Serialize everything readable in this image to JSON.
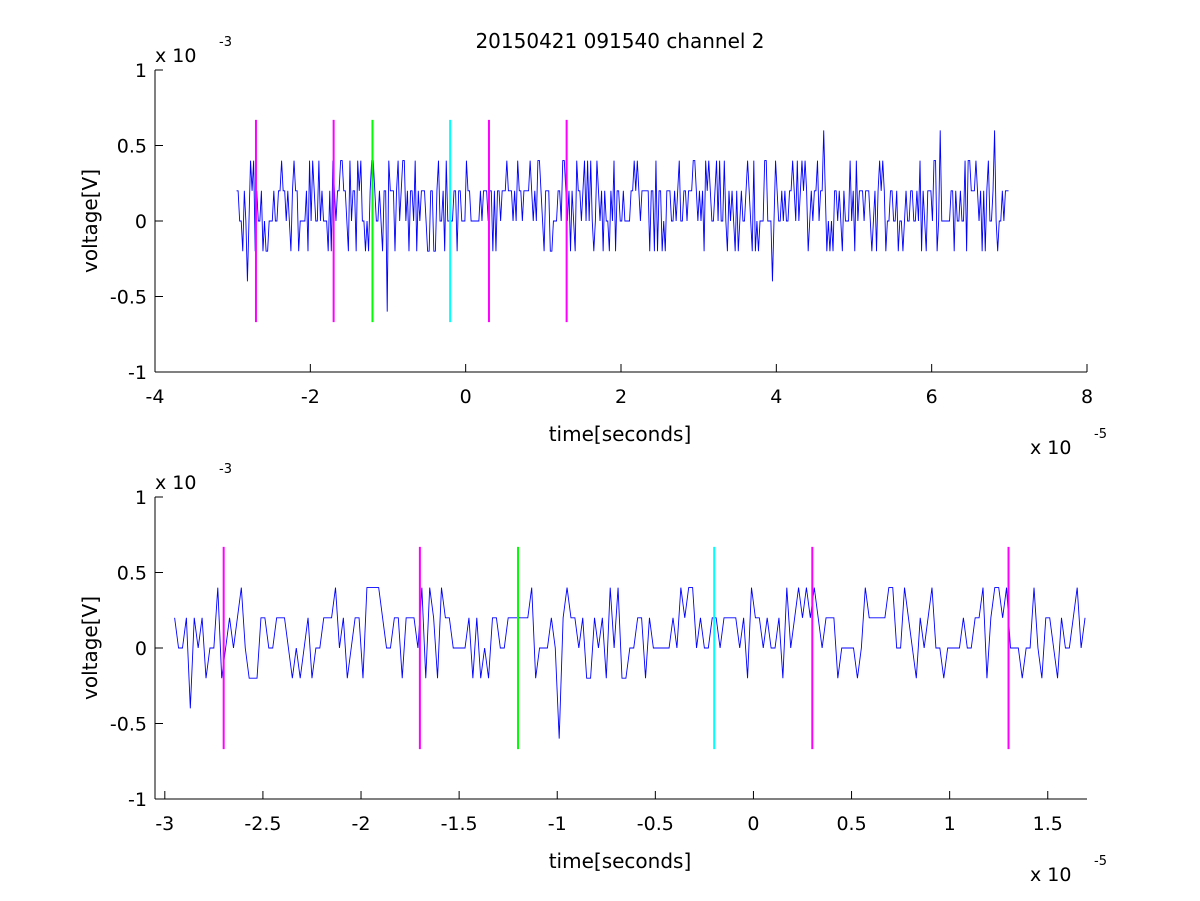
{
  "title": "20150421 091540 channel 2",
  "colors": {
    "signal": "#0000ff",
    "marker_magenta": "#ff00ff",
    "marker_green": "#00ff00",
    "marker_cyan": "#00ffff",
    "axes": "#000000",
    "background": "#ffffff"
  },
  "chart_data": [
    {
      "type": "line",
      "title": "20150421 091540 channel 2",
      "xlabel": "time[seconds]",
      "ylabel": "voltage[V]",
      "x_multiplier": "x 10",
      "x_multiplier_exp": "-5",
      "y_multiplier": "x 10",
      "y_multiplier_exp": "-3",
      "xlim": [
        -4,
        8
      ],
      "ylim": [
        -1,
        1
      ],
      "xticks": [
        -4,
        -2,
        0,
        2,
        4,
        6,
        8
      ],
      "xtick_labels": [
        "-4",
        "-2",
        "0",
        "2",
        "4",
        "6",
        "8"
      ],
      "yticks": [
        -1,
        -0.5,
        0,
        0.5,
        1
      ],
      "ytick_labels": [
        "-1",
        "-0.5",
        "0",
        "0.5",
        "1"
      ],
      "grid": false,
      "series": [
        {
          "kind": "noise-signal",
          "color": "#0000ff",
          "x_range": [
            -2.95,
            7.0
          ],
          "levels": [
            -0.6,
            -0.4,
            -0.2,
            0,
            0.2,
            0.4,
            0.6
          ],
          "typical_range": [
            -0.2,
            0.4
          ],
          "notable_points": [
            [
              -2.82,
              -0.4
            ],
            [
              -1.0,
              -0.6
            ],
            [
              3.95,
              -0.4
            ],
            [
              4.6,
              0.6
            ],
            [
              6.1,
              0.6
            ],
            [
              6.8,
              0.6
            ]
          ]
        }
      ],
      "markers": [
        {
          "x": -2.7,
          "color": "#ff00ff",
          "y_range": [
            -0.67,
            0.67
          ]
        },
        {
          "x": -1.7,
          "color": "#ff00ff",
          "y_range": [
            -0.67,
            0.67
          ]
        },
        {
          "x": -1.2,
          "color": "#00ff00",
          "y_range": [
            -0.67,
            0.67
          ]
        },
        {
          "x": -0.2,
          "color": "#00ffff",
          "y_range": [
            -0.67,
            0.67
          ]
        },
        {
          "x": 0.3,
          "color": "#ff00ff",
          "y_range": [
            -0.67,
            0.67
          ]
        },
        {
          "x": 1.3,
          "color": "#ff00ff",
          "y_range": [
            -0.67,
            0.67
          ]
        }
      ]
    },
    {
      "type": "line",
      "title": "",
      "xlabel": "time[seconds]",
      "ylabel": "voltage[V]",
      "x_multiplier": "x 10",
      "x_multiplier_exp": "-5",
      "y_multiplier": "x 10",
      "y_multiplier_exp": "-3",
      "xlim": [
        -3.05,
        1.7
      ],
      "ylim": [
        -1,
        1
      ],
      "xticks": [
        -3,
        -2.5,
        -2,
        -1.5,
        -1,
        -0.5,
        0,
        0.5,
        1,
        1.5
      ],
      "xtick_labels": [
        "-3",
        "-2.5",
        "-2",
        "-1.5",
        "-1",
        "-0.5",
        "0",
        "0.5",
        "1",
        "1.5"
      ],
      "yticks": [
        -1,
        -0.5,
        0,
        0.5,
        1
      ],
      "ytick_labels": [
        "-1",
        "-0.5",
        "0",
        "0.5",
        "1"
      ],
      "grid": false,
      "series": [
        {
          "kind": "noise-signal",
          "color": "#0000ff",
          "x_range": [
            -2.95,
            1.7
          ],
          "levels": [
            -0.6,
            -0.4,
            -0.2,
            0,
            0.2,
            0.4
          ],
          "typical_range": [
            -0.2,
            0.4
          ],
          "notable_points": [
            [
              -2.87,
              -0.4
            ],
            [
              -0.98,
              -0.6
            ],
            [
              1.3,
              0.4
            ]
          ]
        }
      ],
      "markers": [
        {
          "x": -2.7,
          "color": "#ff00ff",
          "y_range": [
            -0.67,
            0.67
          ]
        },
        {
          "x": -1.7,
          "color": "#ff00ff",
          "y_range": [
            -0.67,
            0.67
          ]
        },
        {
          "x": -1.2,
          "color": "#00ff00",
          "y_range": [
            -0.67,
            0.67
          ]
        },
        {
          "x": -0.2,
          "color": "#00ffff",
          "y_range": [
            -0.67,
            0.67
          ]
        },
        {
          "x": 0.3,
          "color": "#ff00ff",
          "y_range": [
            -0.67,
            0.67
          ]
        },
        {
          "x": 1.3,
          "color": "#ff00ff",
          "y_range": [
            -0.67,
            0.67
          ]
        }
      ]
    }
  ]
}
